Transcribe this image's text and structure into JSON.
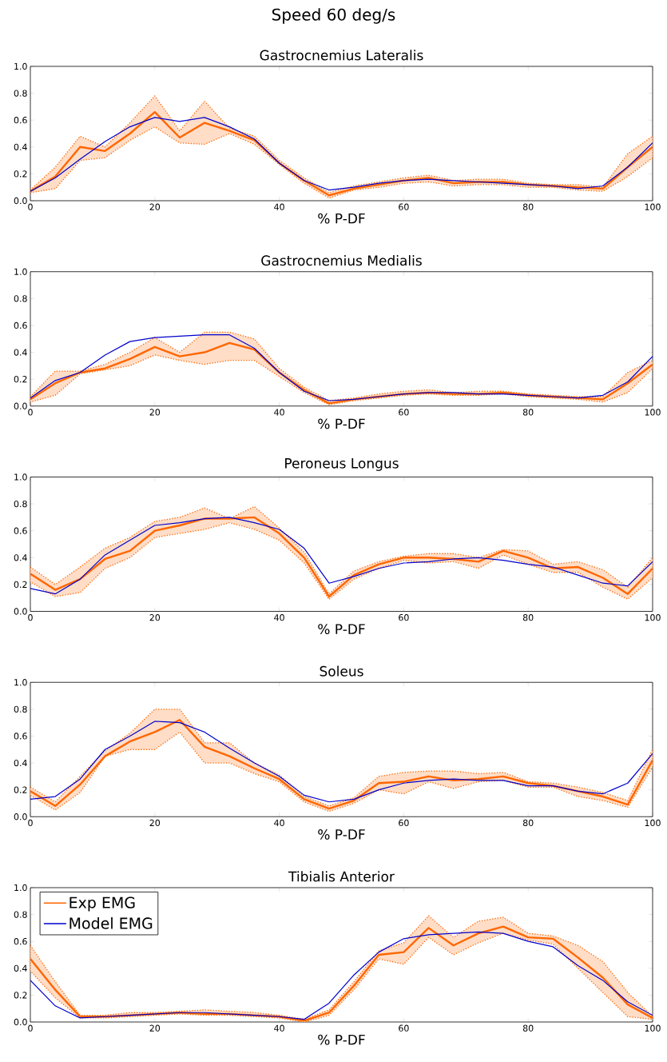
{
  "chart_data": [
    {
      "type": "other",
      "title": "Speed 60 deg/s"
    },
    {
      "type": "line",
      "title": "Gastrocnemius Lateralis",
      "xlabel": "% P-DF",
      "xlim": [
        0,
        100
      ],
      "xticks": [
        0,
        20,
        40,
        60,
        80,
        100
      ],
      "ylim": [
        0,
        1
      ],
      "yticks": [
        {
          "value": 0,
          "label": "0.0"
        },
        {
          "value": 0.2,
          "label": "0.2"
        },
        {
          "value": 0.4,
          "label": "0.4"
        },
        {
          "value": 0.6,
          "label": "0.6"
        },
        {
          "value": 0.8,
          "label": "0.8"
        },
        {
          "value": 1,
          "label": "1.0"
        }
      ],
      "x": [
        0,
        4,
        8,
        12,
        16,
        20,
        24,
        28,
        32,
        36,
        40,
        44,
        48,
        52,
        56,
        60,
        64,
        68,
        72,
        76,
        80,
        84,
        88,
        92,
        96,
        100
      ],
      "series": [
        {
          "color": "#ff6600",
          "values": [
            0.07,
            0.18,
            0.4,
            0.37,
            0.5,
            0.66,
            0.47,
            0.58,
            0.52,
            0.45,
            0.28,
            0.15,
            0.04,
            0.09,
            0.12,
            0.15,
            0.17,
            0.13,
            0.14,
            0.14,
            0.12,
            0.11,
            0.1,
            0.09,
            0.25,
            0.4
          ],
          "lower": [
            0.06,
            0.09,
            0.3,
            0.32,
            0.45,
            0.55,
            0.43,
            0.42,
            0.5,
            0.42,
            0.27,
            0.13,
            0.02,
            0.08,
            0.1,
            0.13,
            0.14,
            0.11,
            0.12,
            0.12,
            0.1,
            0.1,
            0.08,
            0.07,
            0.18,
            0.32
          ],
          "upper": [
            0.08,
            0.25,
            0.48,
            0.4,
            0.58,
            0.78,
            0.52,
            0.74,
            0.54,
            0.48,
            0.3,
            0.17,
            0.06,
            0.11,
            0.14,
            0.17,
            0.19,
            0.15,
            0.16,
            0.16,
            0.13,
            0.12,
            0.12,
            0.1,
            0.35,
            0.48
          ]
        },
        {
          "color": "#0000cc",
          "values": [
            0.07,
            0.17,
            0.31,
            0.44,
            0.55,
            0.62,
            0.59,
            0.62,
            0.55,
            0.46,
            0.28,
            0.15,
            0.08,
            0.1,
            0.13,
            0.15,
            0.16,
            0.15,
            0.14,
            0.13,
            0.12,
            0.11,
            0.09,
            0.11,
            0.25,
            0.43
          ]
        }
      ]
    },
    {
      "type": "line",
      "title": "Gastrocnemius Medialis",
      "xlabel": "% P-DF",
      "xlim": [
        0,
        100
      ],
      "xticks": [
        0,
        20,
        40,
        60,
        80,
        100
      ],
      "ylim": [
        0,
        1
      ],
      "yticks": [
        {
          "value": 0,
          "label": "0.0"
        },
        {
          "value": 0.2,
          "label": "0.2"
        },
        {
          "value": 0.4,
          "label": "0.4"
        },
        {
          "value": 0.6,
          "label": "0.6"
        },
        {
          "value": 0.8,
          "label": "0.8"
        },
        {
          "value": 1,
          "label": "1.0"
        }
      ],
      "x": [
        0,
        4,
        8,
        12,
        16,
        20,
        24,
        28,
        32,
        36,
        40,
        44,
        48,
        52,
        56,
        60,
        64,
        68,
        72,
        76,
        80,
        84,
        88,
        92,
        96,
        100
      ],
      "series": [
        {
          "color": "#ff6600",
          "values": [
            0.05,
            0.17,
            0.25,
            0.28,
            0.35,
            0.44,
            0.37,
            0.4,
            0.47,
            0.42,
            0.25,
            0.12,
            0.02,
            0.05,
            0.07,
            0.09,
            0.1,
            0.09,
            0.09,
            0.1,
            0.08,
            0.07,
            0.06,
            0.05,
            0.17,
            0.31
          ],
          "lower": [
            0.03,
            0.08,
            0.24,
            0.27,
            0.3,
            0.38,
            0.34,
            0.31,
            0.34,
            0.34,
            0.22,
            0.1,
            0.01,
            0.04,
            0.06,
            0.08,
            0.09,
            0.08,
            0.08,
            0.09,
            0.07,
            0.06,
            0.05,
            0.03,
            0.1,
            0.28
          ],
          "upper": [
            0.07,
            0.26,
            0.26,
            0.31,
            0.4,
            0.51,
            0.4,
            0.55,
            0.55,
            0.5,
            0.28,
            0.14,
            0.04,
            0.06,
            0.09,
            0.11,
            0.12,
            0.1,
            0.11,
            0.11,
            0.09,
            0.08,
            0.07,
            0.07,
            0.25,
            0.34
          ]
        },
        {
          "color": "#0000cc",
          "values": [
            0.06,
            0.19,
            0.25,
            0.38,
            0.48,
            0.51,
            0.52,
            0.53,
            0.53,
            0.43,
            0.25,
            0.11,
            0.04,
            0.05,
            0.07,
            0.09,
            0.1,
            0.1,
            0.09,
            0.09,
            0.08,
            0.07,
            0.06,
            0.08,
            0.18,
            0.37
          ]
        }
      ]
    },
    {
      "type": "line",
      "title": "Peroneus Longus",
      "xlabel": "% P-DF",
      "xlim": [
        0,
        100
      ],
      "xticks": [
        0,
        20,
        40,
        60,
        80,
        100
      ],
      "ylim": [
        0,
        1
      ],
      "yticks": [
        {
          "value": 0,
          "label": "0.0"
        },
        {
          "value": 0.2,
          "label": "0.2"
        },
        {
          "value": 0.4,
          "label": "0.4"
        },
        {
          "value": 0.6,
          "label": "0.6"
        },
        {
          "value": 0.8,
          "label": "0.8"
        },
        {
          "value": 1,
          "label": "1.0"
        }
      ],
      "x": [
        0,
        4,
        8,
        12,
        16,
        20,
        24,
        28,
        32,
        36,
        40,
        44,
        48,
        52,
        56,
        60,
        64,
        68,
        72,
        76,
        80,
        84,
        88,
        92,
        96,
        100
      ],
      "series": [
        {
          "color": "#ff6600",
          "values": [
            0.28,
            0.16,
            0.24,
            0.39,
            0.45,
            0.6,
            0.64,
            0.69,
            0.69,
            0.7,
            0.58,
            0.4,
            0.11,
            0.27,
            0.35,
            0.4,
            0.4,
            0.39,
            0.37,
            0.45,
            0.4,
            0.32,
            0.33,
            0.25,
            0.13,
            0.32
          ],
          "lower": [
            0.22,
            0.11,
            0.14,
            0.32,
            0.4,
            0.55,
            0.58,
            0.61,
            0.66,
            0.61,
            0.53,
            0.36,
            0.09,
            0.24,
            0.32,
            0.38,
            0.36,
            0.37,
            0.32,
            0.42,
            0.35,
            0.29,
            0.29,
            0.18,
            0.09,
            0.25
          ],
          "upper": [
            0.33,
            0.2,
            0.33,
            0.47,
            0.55,
            0.67,
            0.7,
            0.77,
            0.69,
            0.78,
            0.62,
            0.44,
            0.13,
            0.3,
            0.37,
            0.41,
            0.43,
            0.43,
            0.4,
            0.46,
            0.45,
            0.35,
            0.37,
            0.31,
            0.18,
            0.4
          ]
        },
        {
          "color": "#0000cc",
          "values": [
            0.17,
            0.13,
            0.24,
            0.42,
            0.53,
            0.64,
            0.66,
            0.69,
            0.7,
            0.66,
            0.61,
            0.47,
            0.21,
            0.26,
            0.32,
            0.36,
            0.37,
            0.39,
            0.4,
            0.38,
            0.35,
            0.33,
            0.27,
            0.21,
            0.19,
            0.37
          ]
        }
      ]
    },
    {
      "type": "line",
      "title": "Soleus",
      "xlabel": "% P-DF",
      "xlim": [
        0,
        100
      ],
      "xticks": [
        0,
        20,
        40,
        60,
        80,
        100
      ],
      "ylim": [
        0,
        1
      ],
      "yticks": [
        {
          "value": 0,
          "label": "0.0"
        },
        {
          "value": 0.2,
          "label": "0.2"
        },
        {
          "value": 0.4,
          "label": "0.4"
        },
        {
          "value": 0.6,
          "label": "0.6"
        },
        {
          "value": 0.8,
          "label": "0.8"
        },
        {
          "value": 1,
          "label": "1.0"
        }
      ],
      "x": [
        0,
        4,
        8,
        12,
        16,
        20,
        24,
        28,
        32,
        36,
        40,
        44,
        48,
        52,
        56,
        60,
        64,
        68,
        72,
        76,
        80,
        84,
        88,
        92,
        96,
        100
      ],
      "series": [
        {
          "color": "#ff6600",
          "values": [
            0.19,
            0.08,
            0.24,
            0.45,
            0.56,
            0.63,
            0.72,
            0.52,
            0.45,
            0.36,
            0.28,
            0.13,
            0.06,
            0.12,
            0.25,
            0.26,
            0.3,
            0.27,
            0.28,
            0.3,
            0.25,
            0.23,
            0.19,
            0.15,
            0.09,
            0.42
          ],
          "lower": [
            0.16,
            0.05,
            0.18,
            0.45,
            0.5,
            0.5,
            0.63,
            0.4,
            0.4,
            0.32,
            0.26,
            0.11,
            0.04,
            0.1,
            0.2,
            0.17,
            0.26,
            0.21,
            0.26,
            0.27,
            0.22,
            0.22,
            0.15,
            0.12,
            0.07,
            0.37
          ],
          "upper": [
            0.22,
            0.11,
            0.3,
            0.49,
            0.62,
            0.8,
            0.8,
            0.55,
            0.55,
            0.4,
            0.31,
            0.15,
            0.08,
            0.14,
            0.3,
            0.33,
            0.34,
            0.34,
            0.32,
            0.33,
            0.26,
            0.25,
            0.22,
            0.18,
            0.12,
            0.5
          ]
        },
        {
          "color": "#0000cc",
          "values": [
            0.13,
            0.15,
            0.28,
            0.5,
            0.6,
            0.71,
            0.7,
            0.63,
            0.51,
            0.4,
            0.3,
            0.16,
            0.11,
            0.13,
            0.2,
            0.25,
            0.27,
            0.28,
            0.27,
            0.27,
            0.23,
            0.23,
            0.19,
            0.17,
            0.25,
            0.47
          ]
        }
      ]
    },
    {
      "type": "line",
      "title": "Tibialis Anterior",
      "xlabel": "% P-DF",
      "xlim": [
        0,
        100
      ],
      "xticks": [
        0,
        20,
        40,
        60,
        80,
        100
      ],
      "ylim": [
        0,
        1
      ],
      "yticks": [
        {
          "value": 0,
          "label": "0.0"
        },
        {
          "value": 0.2,
          "label": "0.2"
        },
        {
          "value": 0.4,
          "label": "0.4"
        },
        {
          "value": 0.6,
          "label": "0.6"
        },
        {
          "value": 0.8,
          "label": "0.8"
        },
        {
          "value": 1,
          "label": "1.0"
        }
      ],
      "legend": "top left",
      "x": [
        0,
        4,
        8,
        12,
        16,
        20,
        24,
        28,
        32,
        36,
        40,
        44,
        48,
        52,
        56,
        60,
        64,
        68,
        72,
        76,
        80,
        84,
        88,
        92,
        96,
        100
      ],
      "series": [
        {
          "name": "Exp EMG",
          "color": "#ff6600",
          "values": [
            0.47,
            0.24,
            0.04,
            0.04,
            0.05,
            0.06,
            0.07,
            0.06,
            0.06,
            0.05,
            0.04,
            0.01,
            0.07,
            0.27,
            0.5,
            0.52,
            0.7,
            0.57,
            0.66,
            0.71,
            0.63,
            0.62,
            0.48,
            0.33,
            0.13,
            0.03
          ],
          "lower": [
            0.38,
            0.18,
            0.03,
            0.03,
            0.04,
            0.05,
            0.06,
            0.05,
            0.05,
            0.04,
            0.03,
            0.0,
            0.05,
            0.24,
            0.47,
            0.43,
            0.63,
            0.5,
            0.59,
            0.66,
            0.61,
            0.58,
            0.4,
            0.22,
            0.04,
            0.02
          ],
          "upper": [
            0.57,
            0.3,
            0.05,
            0.05,
            0.07,
            0.07,
            0.08,
            0.09,
            0.08,
            0.07,
            0.05,
            0.02,
            0.09,
            0.3,
            0.53,
            0.59,
            0.79,
            0.63,
            0.75,
            0.78,
            0.66,
            0.64,
            0.57,
            0.45,
            0.22,
            0.04
          ]
        },
        {
          "name": "Model EMG",
          "color": "#0000cc",
          "values": [
            0.31,
            0.12,
            0.03,
            0.04,
            0.05,
            0.06,
            0.07,
            0.07,
            0.06,
            0.05,
            0.04,
            0.02,
            0.14,
            0.35,
            0.52,
            0.62,
            0.65,
            0.66,
            0.67,
            0.66,
            0.6,
            0.56,
            0.42,
            0.31,
            0.15,
            0.05
          ]
        }
      ]
    }
  ]
}
